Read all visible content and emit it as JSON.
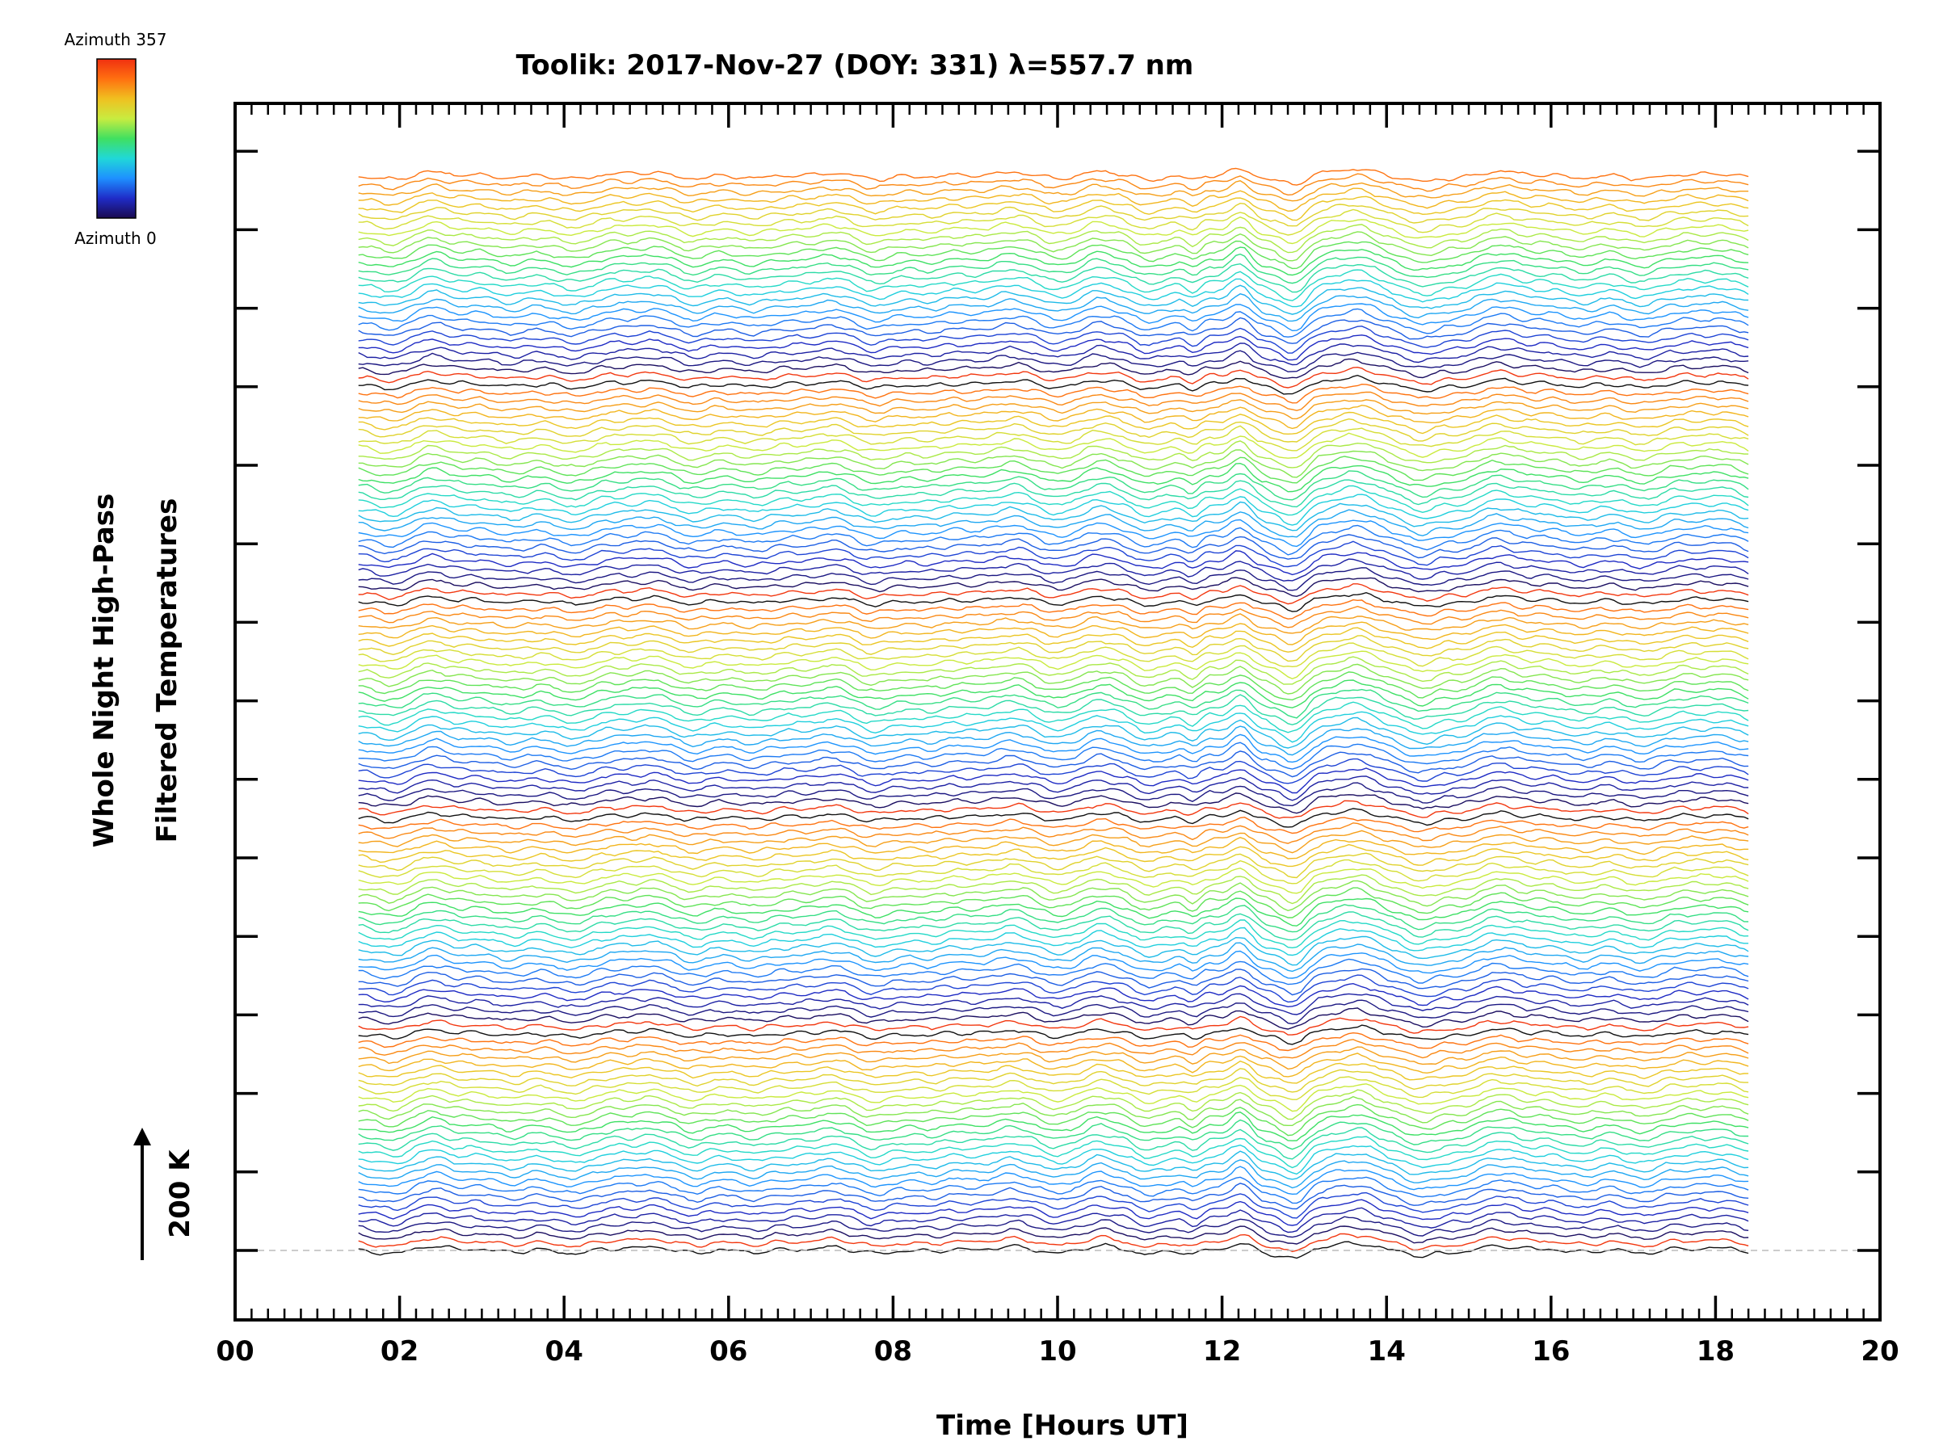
{
  "chart_data": {
    "type": "line",
    "title": "Toolik: 2017-Nov-27 (DOY: 331) λ=557.7 nm",
    "xlabel": "Time [Hours UT]",
    "ylabel_line1": "Whole Night High-Pass",
    "ylabel_line2": "Filtered Temperatures",
    "xlim": [
      0,
      20
    ],
    "x_tick_labels": [
      "00",
      "02",
      "04",
      "06",
      "08",
      "10",
      "12",
      "14",
      "16",
      "18",
      "20"
    ],
    "data_time_range": [
      1.5,
      18.4
    ],
    "scale_bar": {
      "label": "200 K",
      "value_k": 200
    },
    "colorbar": {
      "top_label": "Azimuth 357",
      "bottom_label": "Azimuth 0",
      "min": 0,
      "max": 357,
      "colormap": [
        "#1a0a50",
        "#1f2cc8",
        "#1e90ff",
        "#20d8d8",
        "#40e060",
        "#c8ec40",
        "#f0c020",
        "#ff7010",
        "#f03010"
      ]
    },
    "series_count": 140,
    "azimuth_cycles": 5,
    "offset_per_series_k": 4,
    "notable_features": [
      {
        "time_ut": 10.5,
        "description": "coherent wave crest"
      },
      {
        "time_ut": 11.7,
        "description": "sharp trough"
      },
      {
        "time_ut": 12.2,
        "description": "strong wave crest"
      },
      {
        "time_ut": 12.9,
        "description": "deep trough"
      },
      {
        "time_ut": 13.6,
        "description": "broad crest"
      },
      {
        "time_ut": 14.5,
        "description": "trough"
      }
    ],
    "baseline_style": "dashed"
  },
  "colors": {
    "axis": "#000000",
    "baseline": "#bbbbbb",
    "background": "#ffffff"
  }
}
